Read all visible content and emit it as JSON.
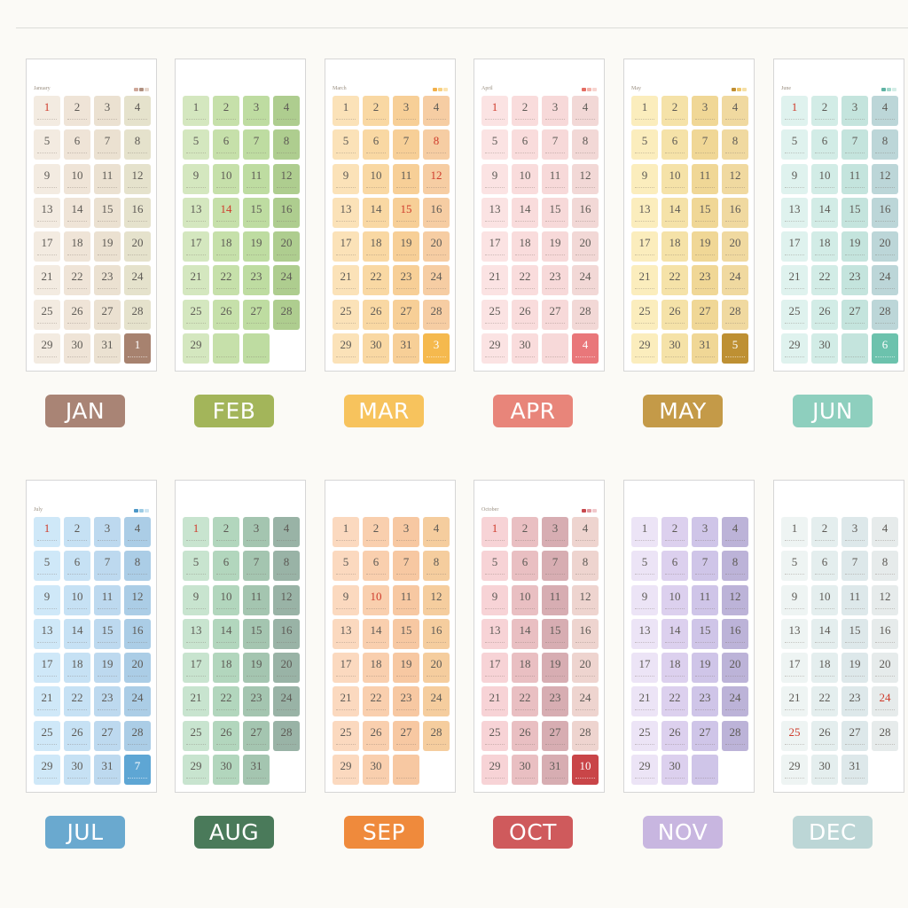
{
  "months": [
    {
      "title": "January",
      "label": "JAN",
      "label_color": "#a98475",
      "dots": [
        "#cfa89a",
        "#b09080",
        "#e6d6cc"
      ],
      "palette": [
        "#f3ebe1",
        "#efe4d7",
        "#ebe1d1",
        "#e5e2cc"
      ],
      "days": [
        {
          "n": "1",
          "red": true
        },
        {
          "n": "2"
        },
        {
          "n": "3"
        },
        {
          "n": "4"
        },
        {
          "n": "5"
        },
        {
          "n": "6"
        },
        {
          "n": "7"
        },
        {
          "n": "8"
        },
        {
          "n": "9"
        },
        {
          "n": "10"
        },
        {
          "n": "11"
        },
        {
          "n": "12"
        },
        {
          "n": "13"
        },
        {
          "n": "14"
        },
        {
          "n": "15"
        },
        {
          "n": "16"
        },
        {
          "n": "17"
        },
        {
          "n": "18"
        },
        {
          "n": "19"
        },
        {
          "n": "20"
        },
        {
          "n": "21"
        },
        {
          "n": "22"
        },
        {
          "n": "23"
        },
        {
          "n": "24"
        },
        {
          "n": "25"
        },
        {
          "n": "26"
        },
        {
          "n": "27"
        },
        {
          "n": "28"
        },
        {
          "n": "29"
        },
        {
          "n": "30"
        },
        {
          "n": "31"
        },
        {
          "n": "1",
          "accent": "#a7826f",
          "light": true
        }
      ]
    },
    {
      "title": "",
      "label": "FEB",
      "label_color": "#a3b55a",
      "dots": [],
      "palette": [
        "#d4e7bf",
        "#c6e0aa",
        "#bedca1",
        "#aecd8f"
      ],
      "days": [
        {
          "n": "1"
        },
        {
          "n": "2"
        },
        {
          "n": "3"
        },
        {
          "n": "4"
        },
        {
          "n": "5"
        },
        {
          "n": "6"
        },
        {
          "n": "7"
        },
        {
          "n": "8"
        },
        {
          "n": "9"
        },
        {
          "n": "10"
        },
        {
          "n": "11"
        },
        {
          "n": "12"
        },
        {
          "n": "13"
        },
        {
          "n": "14",
          "red": true
        },
        {
          "n": "15"
        },
        {
          "n": "16"
        },
        {
          "n": "17"
        },
        {
          "n": "18"
        },
        {
          "n": "19"
        },
        {
          "n": "20"
        },
        {
          "n": "21"
        },
        {
          "n": "22"
        },
        {
          "n": "23"
        },
        {
          "n": "24"
        },
        {
          "n": "25"
        },
        {
          "n": "26"
        },
        {
          "n": "27"
        },
        {
          "n": "28"
        },
        {
          "n": "29"
        },
        {
          "n": ""
        },
        {
          "n": ""
        },
        {
          "hidden": true
        }
      ]
    },
    {
      "title": "March",
      "label": "MAR",
      "label_color": "#f7c35d",
      "dots": [
        "#f2b04b",
        "#f7d080",
        "#fbe3b0"
      ],
      "palette": [
        "#fbe2b8",
        "#f9d8a3",
        "#f7cf97",
        "#f6cda3"
      ],
      "days": [
        {
          "n": "1"
        },
        {
          "n": "2"
        },
        {
          "n": "3"
        },
        {
          "n": "4"
        },
        {
          "n": "5"
        },
        {
          "n": "6"
        },
        {
          "n": "7"
        },
        {
          "n": "8",
          "red": true
        },
        {
          "n": "9"
        },
        {
          "n": "10"
        },
        {
          "n": "11"
        },
        {
          "n": "12",
          "red": true
        },
        {
          "n": "13"
        },
        {
          "n": "14"
        },
        {
          "n": "15",
          "red": true
        },
        {
          "n": "16"
        },
        {
          "n": "17"
        },
        {
          "n": "18"
        },
        {
          "n": "19"
        },
        {
          "n": "20"
        },
        {
          "n": "21"
        },
        {
          "n": "22"
        },
        {
          "n": "23"
        },
        {
          "n": "24"
        },
        {
          "n": "25"
        },
        {
          "n": "26"
        },
        {
          "n": "27"
        },
        {
          "n": "28"
        },
        {
          "n": "29"
        },
        {
          "n": "30"
        },
        {
          "n": "31"
        },
        {
          "n": "3",
          "accent": "#f5b94e",
          "light": true
        }
      ]
    },
    {
      "title": "April",
      "label": "APR",
      "label_color": "#e8857a",
      "dots": [
        "#e46d63",
        "#f3b3aa",
        "#f7d4cf"
      ],
      "palette": [
        "#fbe3e3",
        "#f9dcdc",
        "#f7d9d9",
        "#f2d8d6"
      ],
      "days": [
        {
          "n": "1",
          "red": true
        },
        {
          "n": "2"
        },
        {
          "n": "3"
        },
        {
          "n": "4"
        },
        {
          "n": "5"
        },
        {
          "n": "6"
        },
        {
          "n": "7"
        },
        {
          "n": "8"
        },
        {
          "n": "9"
        },
        {
          "n": "10"
        },
        {
          "n": "11"
        },
        {
          "n": "12"
        },
        {
          "n": "13"
        },
        {
          "n": "14"
        },
        {
          "n": "15"
        },
        {
          "n": "16"
        },
        {
          "n": "17"
        },
        {
          "n": "18"
        },
        {
          "n": "19"
        },
        {
          "n": "20"
        },
        {
          "n": "21"
        },
        {
          "n": "22"
        },
        {
          "n": "23"
        },
        {
          "n": "24"
        },
        {
          "n": "25"
        },
        {
          "n": "26"
        },
        {
          "n": "27"
        },
        {
          "n": "28"
        },
        {
          "n": "29"
        },
        {
          "n": "30"
        },
        {
          "n": ""
        },
        {
          "n": "4",
          "accent": "#e9777a",
          "light": true
        }
      ]
    },
    {
      "title": "May",
      "label": "MAY",
      "label_color": "#c49a48",
      "dots": [
        "#c08e32",
        "#efc66b",
        "#f5dfa5"
      ],
      "palette": [
        "#fbedbd",
        "#f5e2a8",
        "#f0d796",
        "#f0d9a0"
      ],
      "days": [
        {
          "n": "1"
        },
        {
          "n": "2"
        },
        {
          "n": "3"
        },
        {
          "n": "4"
        },
        {
          "n": "5"
        },
        {
          "n": "6"
        },
        {
          "n": "7"
        },
        {
          "n": "8"
        },
        {
          "n": "9"
        },
        {
          "n": "10"
        },
        {
          "n": "11"
        },
        {
          "n": "12"
        },
        {
          "n": "13"
        },
        {
          "n": "14"
        },
        {
          "n": "15"
        },
        {
          "n": "16"
        },
        {
          "n": "17"
        },
        {
          "n": "18"
        },
        {
          "n": "19"
        },
        {
          "n": "20"
        },
        {
          "n": "21"
        },
        {
          "n": "22"
        },
        {
          "n": "23"
        },
        {
          "n": "24"
        },
        {
          "n": "25"
        },
        {
          "n": "26"
        },
        {
          "n": "27"
        },
        {
          "n": "28"
        },
        {
          "n": "29"
        },
        {
          "n": "30"
        },
        {
          "n": "31"
        },
        {
          "n": "5",
          "accent": "#be9033",
          "light": true
        }
      ]
    },
    {
      "title": "June",
      "label": "JUN",
      "label_color": "#8ecfbe",
      "dots": [
        "#5fb3a4",
        "#a3d8cc",
        "#d3ede6"
      ],
      "palette": [
        "#dff2ee",
        "#d2ece6",
        "#c4e4dd",
        "#bcd6d8"
      ],
      "days": [
        {
          "n": "1",
          "red": true
        },
        {
          "n": "2"
        },
        {
          "n": "3"
        },
        {
          "n": "4"
        },
        {
          "n": "5"
        },
        {
          "n": "6"
        },
        {
          "n": "7"
        },
        {
          "n": "8"
        },
        {
          "n": "9"
        },
        {
          "n": "10"
        },
        {
          "n": "11"
        },
        {
          "n": "12"
        },
        {
          "n": "13"
        },
        {
          "n": "14"
        },
        {
          "n": "15"
        },
        {
          "n": "16"
        },
        {
          "n": "17"
        },
        {
          "n": "18"
        },
        {
          "n": "19"
        },
        {
          "n": "20"
        },
        {
          "n": "21"
        },
        {
          "n": "22"
        },
        {
          "n": "23"
        },
        {
          "n": "24"
        },
        {
          "n": "25"
        },
        {
          "n": "26"
        },
        {
          "n": "27"
        },
        {
          "n": "28"
        },
        {
          "n": "29"
        },
        {
          "n": "30"
        },
        {
          "n": ""
        },
        {
          "n": "6",
          "accent": "#6cc2ad",
          "light": true
        }
      ]
    },
    {
      "title": "July",
      "label": "JUL",
      "label_color": "#6aa9cf",
      "dots": [
        "#4b97c8",
        "#9ccbe4",
        "#cde5f2"
      ],
      "palette": [
        "#cfe8f8",
        "#c6e1f4",
        "#bdd9ef",
        "#abcde6"
      ],
      "days": [
        {
          "n": "1",
          "red": true
        },
        {
          "n": "2"
        },
        {
          "n": "3"
        },
        {
          "n": "4"
        },
        {
          "n": "5"
        },
        {
          "n": "6"
        },
        {
          "n": "7"
        },
        {
          "n": "8"
        },
        {
          "n": "9"
        },
        {
          "n": "10"
        },
        {
          "n": "11"
        },
        {
          "n": "12"
        },
        {
          "n": "13"
        },
        {
          "n": "14"
        },
        {
          "n": "15"
        },
        {
          "n": "16"
        },
        {
          "n": "17"
        },
        {
          "n": "18"
        },
        {
          "n": "19"
        },
        {
          "n": "20"
        },
        {
          "n": "21"
        },
        {
          "n": "22"
        },
        {
          "n": "23"
        },
        {
          "n": "24"
        },
        {
          "n": "25"
        },
        {
          "n": "26"
        },
        {
          "n": "27"
        },
        {
          "n": "28"
        },
        {
          "n": "29"
        },
        {
          "n": "30"
        },
        {
          "n": "31"
        },
        {
          "n": "7",
          "accent": "#5ea6d4",
          "light": true
        }
      ]
    },
    {
      "title": "",
      "label": "AUG",
      "label_color": "#4a7a5a",
      "dots": [],
      "palette": [
        "#c8e4cf",
        "#b2d6bd",
        "#a4c5b0",
        "#99b3a6"
      ],
      "days": [
        {
          "n": "1",
          "red": true
        },
        {
          "n": "2"
        },
        {
          "n": "3"
        },
        {
          "n": "4"
        },
        {
          "n": "5"
        },
        {
          "n": "6"
        },
        {
          "n": "7"
        },
        {
          "n": "8"
        },
        {
          "n": "9"
        },
        {
          "n": "10"
        },
        {
          "n": "11"
        },
        {
          "n": "12"
        },
        {
          "n": "13"
        },
        {
          "n": "14"
        },
        {
          "n": "15"
        },
        {
          "n": "16"
        },
        {
          "n": "17"
        },
        {
          "n": "18"
        },
        {
          "n": "19"
        },
        {
          "n": "20"
        },
        {
          "n": "21"
        },
        {
          "n": "22"
        },
        {
          "n": "23"
        },
        {
          "n": "24"
        },
        {
          "n": "25"
        },
        {
          "n": "26"
        },
        {
          "n": "27"
        },
        {
          "n": "28"
        },
        {
          "n": "29"
        },
        {
          "n": "30"
        },
        {
          "n": "31"
        },
        {
          "hidden": true
        }
      ]
    },
    {
      "title": "",
      "label": "SEP",
      "label_color": "#ef8a3c",
      "dots": [],
      "palette": [
        "#fbd9bf",
        "#f9cfae",
        "#f7c8a2",
        "#f5cd9e"
      ],
      "days": [
        {
          "n": "1"
        },
        {
          "n": "2"
        },
        {
          "n": "3"
        },
        {
          "n": "4"
        },
        {
          "n": "5"
        },
        {
          "n": "6"
        },
        {
          "n": "7"
        },
        {
          "n": "8"
        },
        {
          "n": "9"
        },
        {
          "n": "10",
          "red": true
        },
        {
          "n": "11"
        },
        {
          "n": "12"
        },
        {
          "n": "13"
        },
        {
          "n": "14"
        },
        {
          "n": "15"
        },
        {
          "n": "16"
        },
        {
          "n": "17"
        },
        {
          "n": "18"
        },
        {
          "n": "19"
        },
        {
          "n": "20"
        },
        {
          "n": "21"
        },
        {
          "n": "22"
        },
        {
          "n": "23"
        },
        {
          "n": "24"
        },
        {
          "n": "25"
        },
        {
          "n": "26"
        },
        {
          "n": "27"
        },
        {
          "n": "28"
        },
        {
          "n": "29"
        },
        {
          "n": "30"
        },
        {
          "n": ""
        },
        {
          "hidden": true
        }
      ]
    },
    {
      "title": "October",
      "label": "OCT",
      "label_color": "#cf5a5c",
      "dots": [
        "#c8484d",
        "#e39aa0",
        "#f0c8cb"
      ],
      "palette": [
        "#f7d3d6",
        "#e9bfc2",
        "#d7adb2",
        "#eed4cf"
      ],
      "days": [
        {
          "n": "1",
          "red": true
        },
        {
          "n": "2"
        },
        {
          "n": "3"
        },
        {
          "n": "4"
        },
        {
          "n": "5"
        },
        {
          "n": "6"
        },
        {
          "n": "7"
        },
        {
          "n": "8"
        },
        {
          "n": "9"
        },
        {
          "n": "10"
        },
        {
          "n": "11"
        },
        {
          "n": "12"
        },
        {
          "n": "13"
        },
        {
          "n": "14"
        },
        {
          "n": "15"
        },
        {
          "n": "16"
        },
        {
          "n": "17"
        },
        {
          "n": "18"
        },
        {
          "n": "19"
        },
        {
          "n": "20"
        },
        {
          "n": "21"
        },
        {
          "n": "22"
        },
        {
          "n": "23"
        },
        {
          "n": "24"
        },
        {
          "n": "25"
        },
        {
          "n": "26"
        },
        {
          "n": "27"
        },
        {
          "n": "28"
        },
        {
          "n": "29"
        },
        {
          "n": "30"
        },
        {
          "n": "31"
        },
        {
          "n": "10",
          "accent": "#c94548",
          "light": true
        }
      ]
    },
    {
      "title": "",
      "label": "NOV",
      "label_color": "#c8b6e0",
      "dots": [],
      "palette": [
        "#ece4f6",
        "#dcd0ee",
        "#cfc5e8",
        "#bcb3d8"
      ],
      "days": [
        {
          "n": "1"
        },
        {
          "n": "2"
        },
        {
          "n": "3"
        },
        {
          "n": "4"
        },
        {
          "n": "5"
        },
        {
          "n": "6"
        },
        {
          "n": "7"
        },
        {
          "n": "8"
        },
        {
          "n": "9"
        },
        {
          "n": "10"
        },
        {
          "n": "11"
        },
        {
          "n": "12"
        },
        {
          "n": "13"
        },
        {
          "n": "14"
        },
        {
          "n": "15"
        },
        {
          "n": "16"
        },
        {
          "n": "17"
        },
        {
          "n": "18"
        },
        {
          "n": "19"
        },
        {
          "n": "20"
        },
        {
          "n": "21"
        },
        {
          "n": "22"
        },
        {
          "n": "23"
        },
        {
          "n": "24"
        },
        {
          "n": "25"
        },
        {
          "n": "26"
        },
        {
          "n": "27"
        },
        {
          "n": "28"
        },
        {
          "n": "29"
        },
        {
          "n": "30"
        },
        {
          "n": ""
        },
        {
          "hidden": true
        }
      ]
    },
    {
      "title": "",
      "label": "DEC",
      "label_color": "#bcd6d6",
      "dots": [],
      "palette": [
        "#eef4f3",
        "#e4eeee",
        "#dde8ea",
        "#e6ebeb"
      ],
      "days": [
        {
          "n": "1"
        },
        {
          "n": "2"
        },
        {
          "n": "3"
        },
        {
          "n": "4"
        },
        {
          "n": "5"
        },
        {
          "n": "6"
        },
        {
          "n": "7"
        },
        {
          "n": "8"
        },
        {
          "n": "9"
        },
        {
          "n": "10"
        },
        {
          "n": "11"
        },
        {
          "n": "12"
        },
        {
          "n": "13"
        },
        {
          "n": "14"
        },
        {
          "n": "15"
        },
        {
          "n": "16"
        },
        {
          "n": "17"
        },
        {
          "n": "18"
        },
        {
          "n": "19"
        },
        {
          "n": "20"
        },
        {
          "n": "21"
        },
        {
          "n": "22"
        },
        {
          "n": "23"
        },
        {
          "n": "24",
          "red": true
        },
        {
          "n": "25",
          "red": true
        },
        {
          "n": "26"
        },
        {
          "n": "27"
        },
        {
          "n": "28"
        },
        {
          "n": "29"
        },
        {
          "n": "30"
        },
        {
          "n": "31"
        },
        {
          "hidden": true
        }
      ]
    }
  ]
}
